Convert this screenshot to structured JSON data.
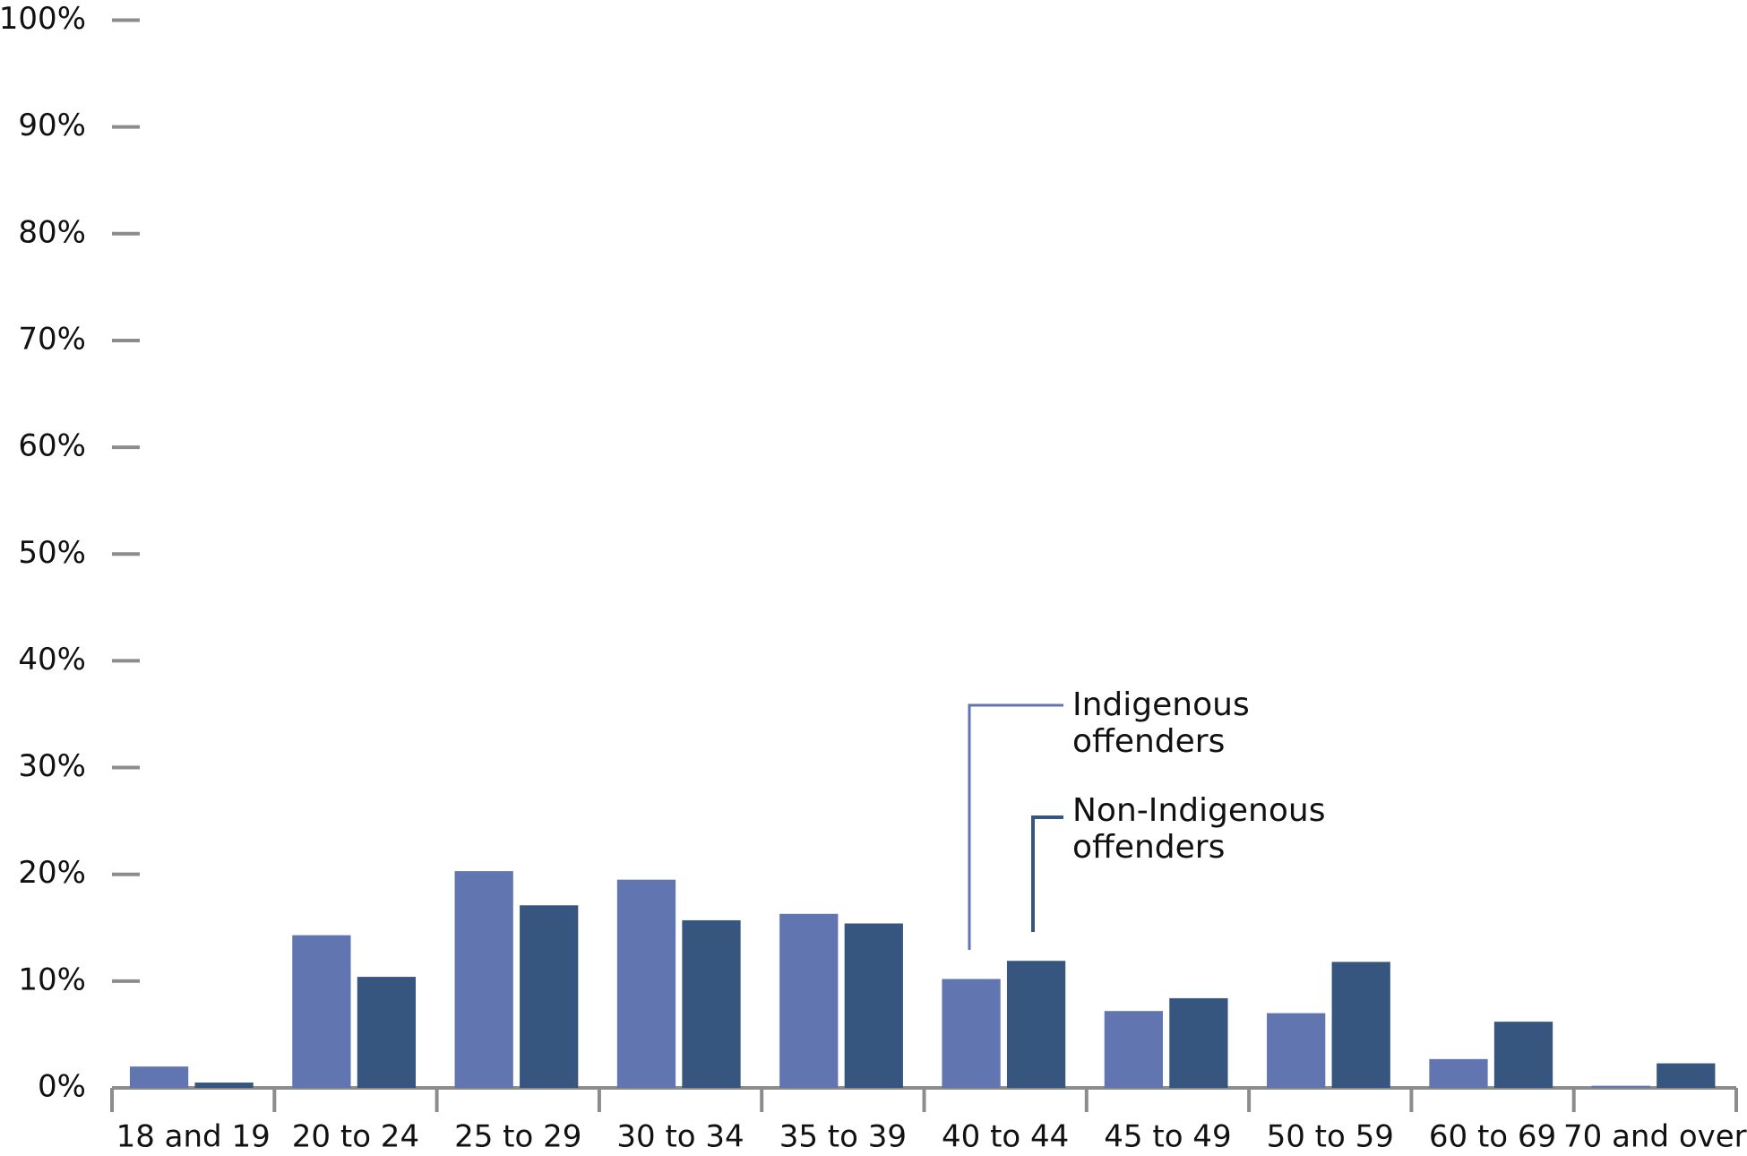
{
  "chart_data": {
    "type": "bar",
    "categories": [
      "18 and 19",
      "20 to 24",
      "25 to 29",
      "30 to 34",
      "35 to 39",
      "40 to 44",
      "45 to 49",
      "50 to 59",
      "60 to 69",
      "70 and over"
    ],
    "series": [
      {
        "name": "Indigenous offenders",
        "color": "#6175b0",
        "values": [
          2.0,
          14.3,
          20.3,
          19.5,
          16.3,
          10.2,
          7.2,
          7.0,
          2.7,
          0.2
        ]
      },
      {
        "name": "Non-Indigenous offenders",
        "color": "#365680",
        "values": [
          0.5,
          10.4,
          17.1,
          15.7,
          15.4,
          11.9,
          8.4,
          11.8,
          6.2,
          2.3
        ]
      }
    ],
    "ylim": [
      0,
      100
    ],
    "yticks": [
      {
        "value": 0,
        "label": "0%"
      },
      {
        "value": 10,
        "label": "10%"
      },
      {
        "value": 20,
        "label": "20%"
      },
      {
        "value": 30,
        "label": "30%"
      },
      {
        "value": 40,
        "label": "40%"
      },
      {
        "value": 50,
        "label": "50%"
      },
      {
        "value": 60,
        "label": "60%"
      },
      {
        "value": 70,
        "label": "70%"
      },
      {
        "value": 80,
        "label": "80%"
      },
      {
        "value": 90,
        "label": "90%"
      },
      {
        "value": 100,
        "label": "100%"
      }
    ]
  }
}
